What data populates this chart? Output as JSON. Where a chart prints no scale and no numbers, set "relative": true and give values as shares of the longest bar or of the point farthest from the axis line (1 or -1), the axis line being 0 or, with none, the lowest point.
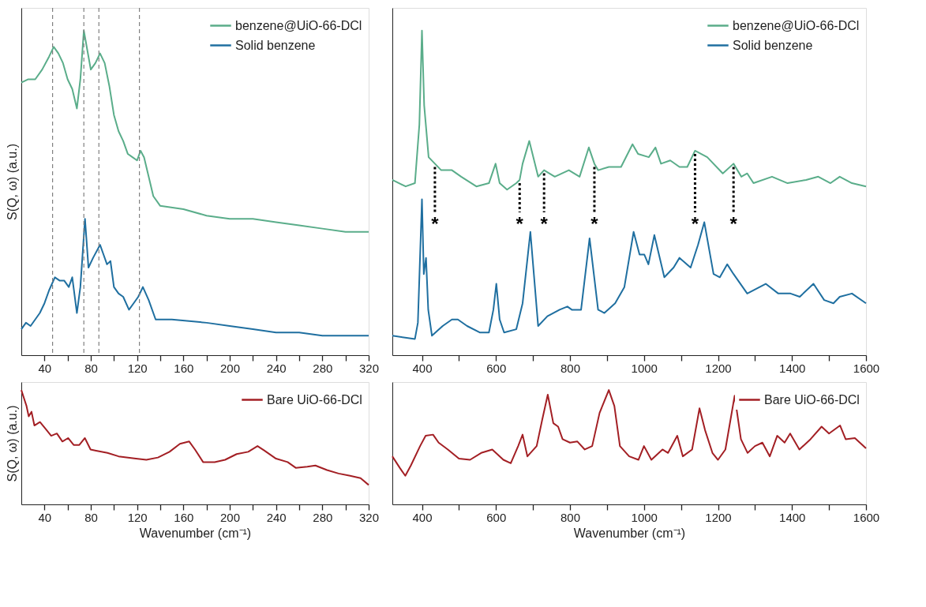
{
  "chart_data": [
    {
      "type": "line",
      "relative": true,
      "ylabel": "S(Q, ω) (a.u.)",
      "xlim": [
        20,
        320
      ],
      "tick_labels": "x",
      "legend": "top right",
      "line_style": "solid",
      "xticks": [
        40,
        {
          "value": 60,
          "label": null
        },
        80,
        {
          "value": 100,
          "label": null
        },
        120,
        {
          "value": 140,
          "label": null
        },
        160,
        {
          "value": 180,
          "label": null
        },
        200,
        {
          "value": 220,
          "label": null
        },
        240,
        {
          "value": 260,
          "label": null
        },
        280,
        {
          "value": 300,
          "label": null
        },
        320
      ],
      "ref_lines": [
        {
          "axis": "x",
          "value": 47,
          "label": null,
          "color": "#808080",
          "line_style": "dashed"
        },
        {
          "axis": "x",
          "value": 74,
          "label": null,
          "color": "#808080",
          "line_style": "dashed"
        },
        {
          "axis": "x",
          "value": 87,
          "label": null,
          "color": "#808080",
          "line_style": "dashed"
        },
        {
          "axis": "x",
          "value": 122,
          "label": null,
          "color": "#808080",
          "line_style": "dashed"
        }
      ],
      "series": [
        {
          "name": "benzene@UiO-66-DCl",
          "color": "#5aad8a",
          "x": [
            20,
            26,
            32,
            38,
            44,
            48,
            52,
            56,
            60,
            64,
            68,
            71,
            74,
            77,
            80,
            84,
            88,
            92,
            96,
            100,
            104,
            108,
            112,
            116,
            120,
            123,
            126,
            130,
            134,
            140,
            160,
            180,
            200,
            220,
            240,
            260,
            280,
            300,
            320
          ],
          "values": [
            0.84,
            0.85,
            0.85,
            0.88,
            0.92,
            0.95,
            0.93,
            0.9,
            0.85,
            0.82,
            0.76,
            0.85,
            1.0,
            0.94,
            0.88,
            0.9,
            0.93,
            0.9,
            0.83,
            0.74,
            0.69,
            0.66,
            0.62,
            0.61,
            0.6,
            0.63,
            0.61,
            0.55,
            0.49,
            0.46,
            0.45,
            0.43,
            0.42,
            0.42,
            0.41,
            0.4,
            0.39,
            0.38,
            0.38
          ]
        },
        {
          "name": "Solid benzene",
          "color": "#1f6fa0",
          "x": [
            20,
            24,
            28,
            32,
            36,
            40,
            44,
            49,
            53,
            57,
            61,
            64,
            68,
            71,
            75,
            78,
            82,
            88,
            91,
            94,
            97,
            100,
            104,
            108,
            113,
            117,
            121,
            125,
            130,
            136,
            150,
            180,
            200,
            220,
            240,
            260,
            280,
            300,
            320
          ],
          "values": [
            0.08,
            0.1,
            0.09,
            0.11,
            0.13,
            0.16,
            0.2,
            0.24,
            0.23,
            0.23,
            0.21,
            0.24,
            0.13,
            0.21,
            0.42,
            0.27,
            0.3,
            0.34,
            0.31,
            0.28,
            0.29,
            0.21,
            0.19,
            0.18,
            0.14,
            0.16,
            0.18,
            0.21,
            0.17,
            0.11,
            0.11,
            0.1,
            0.09,
            0.08,
            0.07,
            0.07,
            0.06,
            0.06,
            0.06
          ]
        }
      ]
    },
    {
      "type": "line",
      "relative": true,
      "xlim": [
        320,
        1600
      ],
      "tick_labels": "x",
      "legend": "top right",
      "line_style": "solid",
      "xticks": [
        400,
        {
          "value": 500,
          "label": null
        },
        600,
        {
          "value": 700,
          "label": null
        },
        800,
        {
          "value": 900,
          "label": null
        },
        1000,
        {
          "value": 1100,
          "label": null
        },
        1200,
        {
          "value": 1300,
          "label": null
        },
        1400,
        {
          "value": 1500,
          "label": null
        },
        1600
      ],
      "annotations": [
        {
          "text": "*",
          "x": 435,
          "y": 0.59
        },
        {
          "text": "*",
          "x": 664,
          "y": 0.54
        },
        {
          "text": "*",
          "x": 730,
          "y": 0.57
        },
        {
          "text": "*",
          "x": 866,
          "y": 0.59
        },
        {
          "text": "*",
          "x": 1138,
          "y": 0.63
        },
        {
          "text": "*",
          "x": 1242,
          "y": 0.59
        }
      ],
      "series": [
        {
          "name": "benzene@UiO-66-DCl",
          "color": "#5aad8a",
          "x": [
            320,
            356,
            381,
            393,
            400,
            406,
            418,
            435,
            452,
            481,
            506,
            547,
            581,
            599,
            610,
            630,
            655,
            664,
            672,
            690,
            714,
            730,
            759,
            797,
            826,
            851,
            866,
            876,
            905,
            938,
            969,
            984,
            1013,
            1031,
            1046,
            1071,
            1096,
            1117,
            1138,
            1171,
            1213,
            1242,
            1263,
            1279,
            1296,
            1346,
            1388,
            1438,
            1471,
            1504,
            1529,
            1562,
            1600
          ],
          "values": [
            0.54,
            0.52,
            0.53,
            0.71,
            1.0,
            0.77,
            0.61,
            0.59,
            0.57,
            0.57,
            0.55,
            0.52,
            0.53,
            0.59,
            0.53,
            0.51,
            0.53,
            0.54,
            0.59,
            0.66,
            0.55,
            0.57,
            0.55,
            0.57,
            0.55,
            0.64,
            0.59,
            0.57,
            0.58,
            0.58,
            0.65,
            0.62,
            0.61,
            0.64,
            0.59,
            0.6,
            0.58,
            0.58,
            0.63,
            0.61,
            0.56,
            0.59,
            0.55,
            0.56,
            0.53,
            0.55,
            0.53,
            0.54,
            0.55,
            0.53,
            0.55,
            0.53,
            0.52
          ]
        },
        {
          "name": "Solid benzene",
          "color": "#1f6fa0",
          "x": [
            320,
            381,
            389,
            400,
            405,
            411,
            417,
            427,
            456,
            481,
            497,
            522,
            556,
            581,
            593,
            601,
            610,
            622,
            655,
            672,
            693,
            714,
            739,
            772,
            793,
            805,
            830,
            853,
            876,
            893,
            922,
            947,
            972,
            988,
            1001,
            1012,
            1028,
            1055,
            1080,
            1096,
            1126,
            1146,
            1163,
            1188,
            1205,
            1225,
            1242,
            1279,
            1329,
            1363,
            1396,
            1421,
            1458,
            1487,
            1512,
            1529,
            1562,
            1600
          ],
          "values": [
            0.06,
            0.05,
            0.1,
            0.48,
            0.25,
            0.3,
            0.14,
            0.06,
            0.09,
            0.11,
            0.11,
            0.09,
            0.07,
            0.07,
            0.14,
            0.22,
            0.11,
            0.07,
            0.08,
            0.16,
            0.38,
            0.09,
            0.12,
            0.14,
            0.15,
            0.14,
            0.14,
            0.36,
            0.14,
            0.13,
            0.16,
            0.21,
            0.38,
            0.31,
            0.31,
            0.28,
            0.37,
            0.24,
            0.27,
            0.3,
            0.27,
            0.34,
            0.41,
            0.25,
            0.24,
            0.28,
            0.25,
            0.19,
            0.22,
            0.19,
            0.19,
            0.18,
            0.22,
            0.17,
            0.16,
            0.18,
            0.19,
            0.16
          ]
        }
      ]
    },
    {
      "type": "line",
      "relative": true,
      "ylabel": "S(Q, ω) (a.u.)",
      "xlabel": "Wavenumber (cm⁻¹)",
      "xlim": [
        20,
        320
      ],
      "tick_labels": "x",
      "legend": "top right",
      "line_style": "solid",
      "xticks": [
        40,
        {
          "value": 60,
          "label": null
        },
        80,
        {
          "value": 100,
          "label": null
        },
        120,
        {
          "value": 140,
          "label": null
        },
        160,
        {
          "value": 180,
          "label": null
        },
        200,
        {
          "value": 220,
          "label": null
        },
        240,
        {
          "value": 260,
          "label": null
        },
        280,
        {
          "value": 300,
          "label": null
        },
        320
      ],
      "series": [
        {
          "name": "Bare UiO-66-DCl",
          "color": "#a31f24",
          "x": [
            20,
            24.5,
            26.4,
            28.8,
            31.3,
            36.1,
            41,
            45.8,
            50.7,
            55.5,
            60.4,
            65.2,
            70.1,
            74.9,
            79.8,
            84.6,
            94.4,
            104,
            119,
            128,
            138,
            148,
            157,
            165,
            170,
            177,
            187,
            196,
            206,
            216,
            224,
            230,
            240,
            250,
            257,
            267,
            274,
            284,
            294,
            304,
            313,
            320
          ],
          "values": [
            1.0,
            0.86,
            0.77,
            0.81,
            0.69,
            0.72,
            0.66,
            0.6,
            0.62,
            0.55,
            0.58,
            0.52,
            0.52,
            0.58,
            0.48,
            0.47,
            0.45,
            0.42,
            0.4,
            0.39,
            0.41,
            0.46,
            0.53,
            0.55,
            0.48,
            0.37,
            0.37,
            0.39,
            0.44,
            0.46,
            0.51,
            0.47,
            0.4,
            0.37,
            0.32,
            0.33,
            0.34,
            0.3,
            0.27,
            0.25,
            0.23,
            0.17
          ]
        }
      ]
    },
    {
      "type": "line",
      "relative": true,
      "xlabel": "Wavenumber (cm⁻¹)",
      "xlim": [
        320,
        1600
      ],
      "tick_labels": "x",
      "legend": "top right",
      "line_style": "solid",
      "xticks": [
        400,
        {
          "value": 500,
          "label": null
        },
        600,
        {
          "value": 700,
          "label": null
        },
        800,
        {
          "value": 900,
          "label": null
        },
        1000,
        {
          "value": 1100,
          "label": null
        },
        1200,
        {
          "value": 1300,
          "label": null
        },
        1400,
        {
          "value": 1500,
          "label": null
        },
        1600
      ],
      "series": [
        {
          "name": "Bare UiO-66-DCl",
          "color": "#a31f24",
          "x": [
            320,
            340,
            355,
            370,
            395,
            410,
            430,
            445,
            470,
            500,
            530,
            560,
            590,
            620,
            640,
            660,
            672,
            685,
            710,
            725,
            740,
            755,
            768,
            780,
            800,
            820,
            840,
            860,
            880,
            905,
            920,
            935,
            960,
            985,
            1000,
            1020,
            1050,
            1065,
            1090,
            1105,
            1130,
            1150,
            1165,
            1185,
            1200,
            1220,
            1245,
            1262,
            1280,
            1300,
            1320,
            1340,
            1360,
            1380,
            1395,
            1420,
            1450,
            1480,
            1500,
            1530,
            1545,
            1570,
            1600
          ],
          "values": [
            0.42,
            0.32,
            0.25,
            0.34,
            0.51,
            0.6,
            0.61,
            0.54,
            0.48,
            0.4,
            0.39,
            0.45,
            0.48,
            0.39,
            0.36,
            0.51,
            0.61,
            0.42,
            0.51,
            0.74,
            0.96,
            0.71,
            0.68,
            0.57,
            0.54,
            0.55,
            0.48,
            0.51,
            0.8,
            1.0,
            0.86,
            0.51,
            0.42,
            0.39,
            0.51,
            0.39,
            0.48,
            0.45,
            0.6,
            0.42,
            0.48,
            0.84,
            0.65,
            0.45,
            0.39,
            0.48,
            0.95,
            0.57,
            0.45,
            0.51,
            0.54,
            0.42,
            0.6,
            0.54,
            0.62,
            0.48,
            0.57,
            0.68,
            0.62,
            0.69,
            0.57,
            0.58,
            0.49
          ]
        }
      ]
    }
  ]
}
